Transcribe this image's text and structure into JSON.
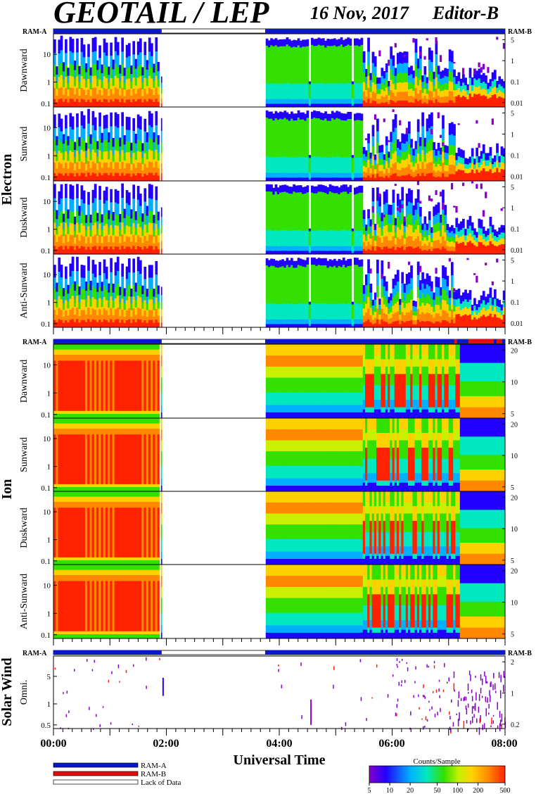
{
  "header": {
    "title": "GEOTAIL / LEP",
    "date": "16 Nov, 2017",
    "editor": "Editor-B"
  },
  "ram": {
    "a": "RAM-A",
    "b": "RAM-B"
  },
  "groups": [
    {
      "label": "Electron",
      "ytick_labels": [
        "10",
        "1",
        "0.1"
      ],
      "right_tick_labels": [
        "5",
        "1",
        "0.1",
        "0.01"
      ],
      "panels": [
        "Dawnward",
        "Sunward",
        "Duskward",
        "Anti-Sunward"
      ]
    },
    {
      "label": "Ion",
      "ytick_labels": [
        "10",
        "1",
        "0.1"
      ],
      "right_tick_labels": [
        "20",
        "10",
        "5"
      ],
      "panels": [
        "Dawnward",
        "Sunward",
        "Duskward",
        "Anti-Sunward"
      ]
    },
    {
      "label": "Solar Wind",
      "ytick_labels": [
        "5",
        "1",
        "0.5"
      ],
      "right_tick_labels": [
        "2",
        "1",
        "0.2"
      ],
      "panels": [
        "Omni."
      ]
    }
  ],
  "chart_data": {
    "type": "heatmap",
    "xlabel": "Universal Time",
    "x_ticks": [
      "00:00",
      "02:00",
      "04:00",
      "06:00",
      "08:00"
    ],
    "xlim": [
      "00:00",
      "08:00"
    ],
    "data_gaps": [
      [
        "01:55",
        "03:45"
      ]
    ],
    "colorbar": {
      "label": "Counts/Sample",
      "ticks": [
        "5",
        "10",
        "20",
        "50",
        "100",
        "200",
        "500"
      ],
      "range": [
        5,
        500
      ],
      "scale": "log",
      "colors": [
        "#8800cc",
        "#2200ff",
        "#00b0ff",
        "#00e8c0",
        "#33e000",
        "#c8f000",
        "#ffd000",
        "#ff8800",
        "#ff2200"
      ]
    }
  },
  "legend": {
    "items": [
      {
        "label": "RAM-A",
        "color": "#0a18c8"
      },
      {
        "label": "RAM-B",
        "color": "#e01010"
      },
      {
        "label": "Lack of Data",
        "color": "#ffffff"
      }
    ]
  }
}
